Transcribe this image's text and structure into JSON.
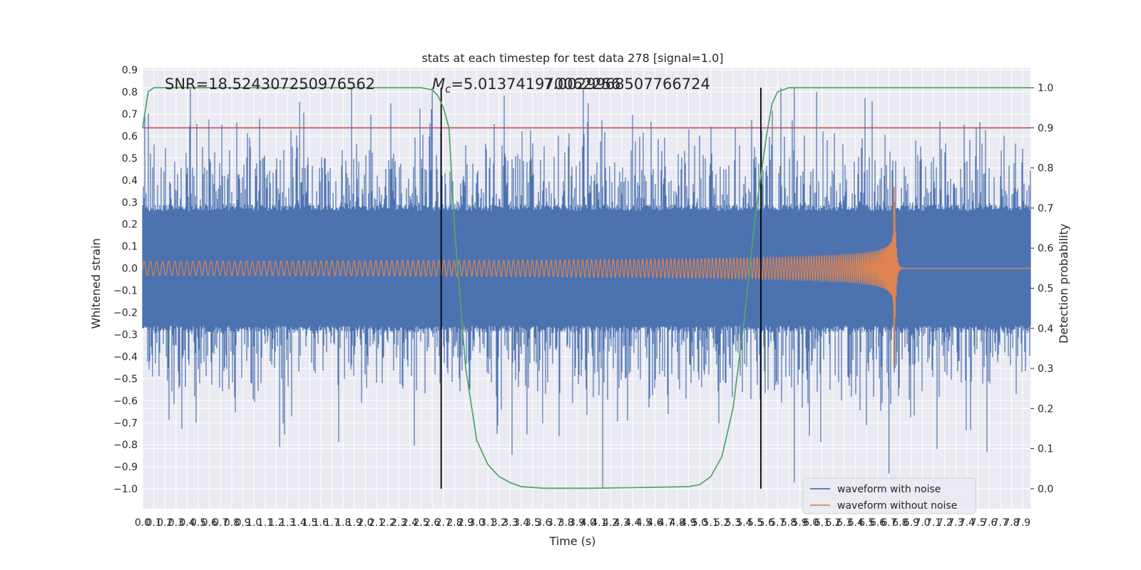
{
  "chart_data": {
    "type": "line",
    "title": "stats at each timestep for test data 278 [signal=1.0]",
    "xlabel": "Time (s)",
    "ylabel_left": "Whitened strain",
    "ylabel_right": "Detection probability",
    "xlim": [
      0.0,
      7.97
    ],
    "ylim_left": [
      -1.09,
      0.91
    ],
    "ylim_right": [
      -0.05,
      1.05
    ],
    "x_ticks": [
      "0.0",
      "0.1",
      "0.2",
      "0.3",
      "0.4",
      "0.5",
      "0.6",
      "0.7",
      "0.8",
      "0.9",
      "1.0",
      "1.1",
      "1.2",
      "1.3",
      "1.4",
      "1.5",
      "1.6",
      "1.7",
      "1.8",
      "1.9",
      "2.0",
      "2.1",
      "2.2",
      "2.3",
      "2.4",
      "2.5",
      "2.6",
      "2.7",
      "2.8",
      "2.9",
      "3.0",
      "3.1",
      "3.2",
      "3.3",
      "3.4",
      "3.5",
      "3.6",
      "3.7",
      "3.8",
      "3.9",
      "4.0",
      "4.1",
      "4.2",
      "4.3",
      "4.4",
      "4.5",
      "4.6",
      "4.7",
      "4.8",
      "4.9",
      "5.0",
      "5.1",
      "5.2",
      "5.3",
      "5.4",
      "5.5",
      "5.6",
      "5.7",
      "5.8",
      "5.9",
      "6.0",
      "6.1",
      "6.2",
      "6.3",
      "6.4",
      "6.5",
      "6.6",
      "6.7",
      "6.8",
      "6.9",
      "7.0",
      "7.1",
      "7.2",
      "7.3",
      "7.4",
      "7.5",
      "7.6",
      "7.7",
      "7.8",
      "7.9"
    ],
    "y_ticks_left": [
      "0.9",
      "0.8",
      "0.7",
      "0.6",
      "0.5",
      "0.4",
      "0.3",
      "0.2",
      "0.1",
      "0.0",
      "−0.1",
      "−0.2",
      "−0.3",
      "−0.4",
      "−0.5",
      "−0.6",
      "−0.7",
      "−0.8",
      "−0.9",
      "−1.0"
    ],
    "y_ticks_right": [
      "1.0",
      "0.9",
      "0.8",
      "0.7",
      "0.6",
      "0.5",
      "0.4",
      "0.3",
      "0.2",
      "0.1",
      "0.0"
    ],
    "annotations": {
      "snr": "SNR=18.524307250976562",
      "chirp_mass": "M_c=5.013741970062256",
      "chirp_mass_prefix": "M",
      "chirp_mass_sub": "c",
      "chirp_mass_value": "=5.013741970062256",
      "overlap_value": "7.0029968507766724"
    },
    "threshold": {
      "axis": "right",
      "value": 0.9,
      "color": "#c44e52"
    },
    "vertical_lines": [
      2.68,
      5.55
    ],
    "series": [
      {
        "name": "waveform with noise",
        "axis": "left",
        "color": "#4c72b0",
        "description": "noisy whitened strain, approx uniform noise band ±0.28 with spikes to ±0.8, min -1.0 near 4.1s"
      },
      {
        "name": "waveform without noise",
        "axis": "left",
        "color": "#dd8452",
        "description": "chirp with amplitude rising from ~0.03 to ~0.37 (upper) / -0.44 (lower) peaking at ~6.75s, then ringdown to ~0"
      },
      {
        "name": "detection probability",
        "axis": "right",
        "color": "#55a868",
        "x": [
          0.0,
          0.05,
          0.1,
          0.3,
          1.0,
          2.0,
          2.5,
          2.6,
          2.65,
          2.7,
          2.75,
          2.8,
          2.9,
          3.0,
          3.1,
          3.2,
          3.3,
          3.4,
          3.6,
          4.0,
          4.5,
          4.9,
          5.0,
          5.1,
          5.2,
          5.3,
          5.4,
          5.5,
          5.6,
          5.65,
          5.7,
          5.8,
          6.0,
          7.0,
          7.97
        ],
        "values": [
          0.9,
          0.99,
          1.0,
          1.0,
          1.0,
          1.0,
          1.0,
          0.995,
          0.98,
          0.95,
          0.9,
          0.65,
          0.3,
          0.12,
          0.06,
          0.03,
          0.015,
          0.005,
          0.001,
          0.001,
          0.003,
          0.005,
          0.01,
          0.03,
          0.08,
          0.2,
          0.42,
          0.68,
          0.88,
          0.96,
          0.99,
          1.0,
          1.0,
          1.0,
          1.0
        ]
      }
    ],
    "legend": [
      "waveform with noise",
      "waveform without noise"
    ],
    "legend_position": "lower-right"
  }
}
